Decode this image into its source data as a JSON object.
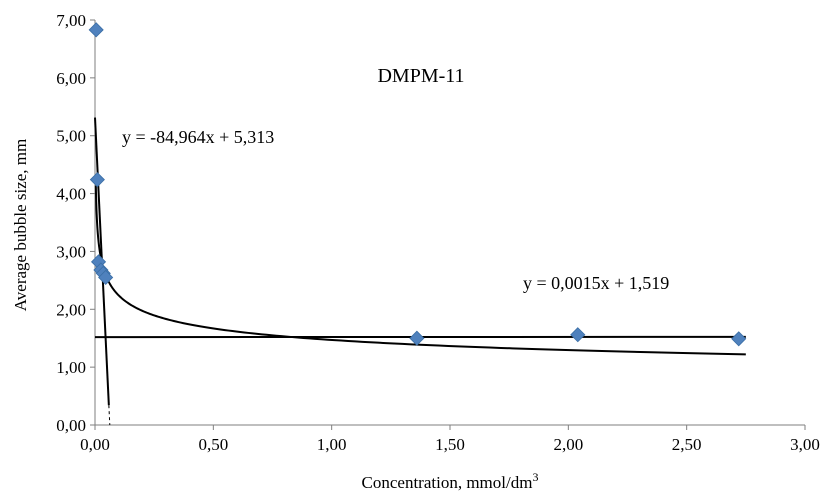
{
  "chart_data": {
    "type": "scatter",
    "title": "DMPM-11",
    "xlabel": "Concentration, mmol/dm",
    "xlabel_sup": "3",
    "ylabel": "Average bubble size, mm",
    "xlim": [
      0,
      3
    ],
    "ylim": [
      0,
      7
    ],
    "x_ticks": [
      "0,00",
      "0,50",
      "1,00",
      "1,50",
      "2,00",
      "2,50",
      "3,00"
    ],
    "y_ticks": [
      "0,00",
      "1,00",
      "2,00",
      "3,00",
      "4,00",
      "5,00",
      "6,00",
      "7,00"
    ],
    "grid": false,
    "series": [
      {
        "marker": "diamond",
        "color": "#4f81bd",
        "points": [
          {
            "x": 0.005,
            "y": 6.83
          },
          {
            "x": 0.01,
            "y": 4.24
          },
          {
            "x": 0.015,
            "y": 2.82
          },
          {
            "x": 0.025,
            "y": 2.68
          },
          {
            "x": 0.035,
            "y": 2.62
          },
          {
            "x": 0.045,
            "y": 2.55
          },
          {
            "x": 1.36,
            "y": 1.5
          },
          {
            "x": 2.04,
            "y": 1.56
          },
          {
            "x": 2.72,
            "y": 1.49
          }
        ]
      }
    ],
    "trendlines": [
      {
        "equation": "y = -84,964x + 5,313",
        "kind": "linear",
        "slope": -84.964,
        "intercept": 5.313,
        "x_range": [
          0,
          0.0585
        ]
      },
      {
        "equation": "y = 0,0015x + 1,519",
        "kind": "linear",
        "slope": 0.0015,
        "intercept": 1.519,
        "x_range": [
          0,
          2.75
        ]
      },
      {
        "kind": "power",
        "coefficient": 1.47,
        "exponent": -0.183,
        "x_range": [
          0.0035,
          2.75
        ]
      }
    ],
    "line_color": "#000000"
  }
}
